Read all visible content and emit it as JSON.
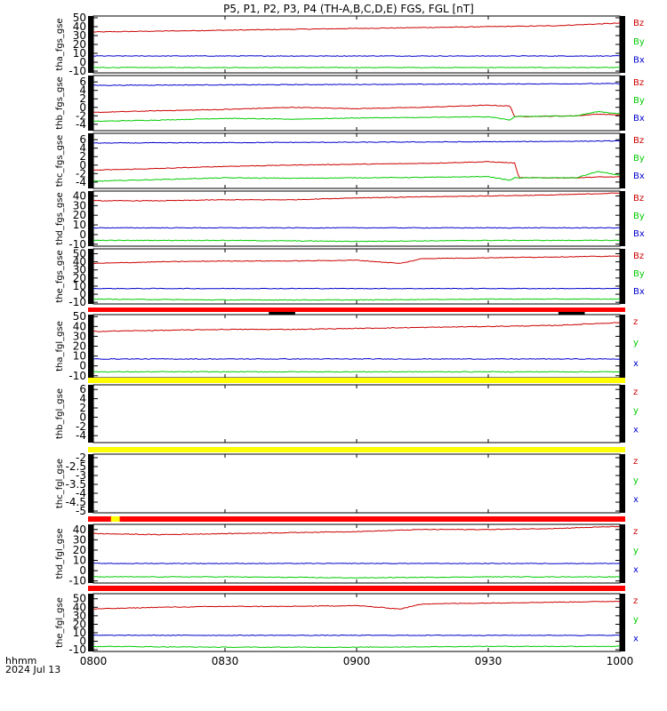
{
  "title": "P5, P1, P2, P3, P4 (TH-A,B,C,D,E) FGS, FGL [nT]",
  "footer": {
    "time_label": "hhmm",
    "date_label": "2024 Jul 13"
  },
  "x_axis": {
    "ticks": [
      "0800",
      "0830",
      "0900",
      "0930",
      "1000"
    ],
    "range_minutes": [
      0,
      120
    ]
  },
  "colors": {
    "z": "#cc0000",
    "y": "#00cc00",
    "x": "#0000cc",
    "bar_red": "#ff0000",
    "bar_yellow": "#ffff00",
    "bar_black": "#000000"
  },
  "chart_data": [
    {
      "type": "line",
      "ylabel": "tha_fgs_gse",
      "ylim": [
        -12,
        52
      ],
      "yticks": [
        50,
        40,
        30,
        20,
        10,
        0,
        -10
      ],
      "legend": [
        "Bz",
        "By",
        "Bx"
      ],
      "series": [
        {
          "name": "Bz",
          "x": [
            0,
            15,
            30,
            45,
            60,
            75,
            90,
            105,
            120
          ],
          "y": [
            34,
            35,
            36,
            37,
            38,
            39,
            40,
            41,
            44
          ]
        },
        {
          "name": "By",
          "x": [
            0,
            30,
            60,
            90,
            120
          ],
          "y": [
            -6,
            -6,
            -6,
            -6,
            -6
          ]
        },
        {
          "name": "Bx",
          "x": [
            0,
            30,
            60,
            90,
            120
          ],
          "y": [
            7,
            7,
            7,
            7,
            7
          ]
        }
      ]
    },
    {
      "type": "line",
      "ylabel": "thb_fgs_gse",
      "ylim": [
        -5.5,
        7.5
      ],
      "yticks": [
        6,
        4,
        2,
        0,
        -2,
        -4
      ],
      "legend": [
        "Bz",
        "By",
        "Bx"
      ],
      "series": [
        {
          "name": "Bz",
          "x": [
            0,
            15,
            30,
            45,
            60,
            75,
            90,
            95,
            96,
            110,
            115,
            120
          ],
          "y": [
            -1.2,
            -0.8,
            -0.5,
            0,
            -0.3,
            0,
            0.5,
            0.3,
            -2.2,
            -2.0,
            -1.6,
            -1.8
          ]
        },
        {
          "name": "By",
          "x": [
            0,
            15,
            30,
            45,
            60,
            75,
            90,
            95,
            96,
            110,
            115,
            120
          ],
          "y": [
            -3.3,
            -3.0,
            -2.6,
            -2.8,
            -2.5,
            -2.4,
            -2.2,
            -3.0,
            -2.2,
            -2.0,
            -1.0,
            -1.5
          ]
        },
        {
          "name": "Bx",
          "x": [
            0,
            30,
            60,
            90,
            120
          ],
          "y": [
            5.2,
            5.3,
            5.4,
            5.5,
            5.6
          ]
        }
      ]
    },
    {
      "type": "line",
      "ylabel": "thc_fgs_gse",
      "ylim": [
        -5.5,
        7.5
      ],
      "yticks": [
        6,
        4,
        2,
        0,
        -2,
        -4
      ],
      "legend": [
        "Bz",
        "By",
        "Bx"
      ],
      "series": [
        {
          "name": "Bz",
          "x": [
            0,
            15,
            30,
            45,
            60,
            75,
            90,
            96,
            97,
            110,
            115,
            120
          ],
          "y": [
            -1.2,
            -0.8,
            -0.3,
            0,
            0.2,
            0.4,
            0.8,
            0.5,
            -3.0,
            -3.0,
            -2.8,
            -2.8
          ]
        },
        {
          "name": "By",
          "x": [
            0,
            15,
            30,
            45,
            60,
            75,
            90,
            95,
            96,
            110,
            115,
            120
          ],
          "y": [
            -3.8,
            -3.4,
            -3.0,
            -3.1,
            -3.0,
            -2.9,
            -2.7,
            -3.6,
            -3.0,
            -3.0,
            -1.5,
            -2.4
          ]
        },
        {
          "name": "Bx",
          "x": [
            0,
            30,
            60,
            90,
            120
          ],
          "y": [
            5.2,
            5.3,
            5.4,
            5.5,
            5.7
          ]
        }
      ]
    },
    {
      "type": "line",
      "ylabel": "thd_fgs_gse",
      "ylim": [
        -12,
        45
      ],
      "yticks": [
        40,
        30,
        20,
        10,
        0,
        -10
      ],
      "legend": [
        "Bz",
        "By",
        "Bx"
      ],
      "series": [
        {
          "name": "Bz",
          "x": [
            0,
            15,
            30,
            45,
            60,
            75,
            90,
            105,
            120
          ],
          "y": [
            35,
            35,
            36,
            36,
            38,
            39,
            40,
            41,
            43
          ]
        },
        {
          "name": "By",
          "x": [
            0,
            30,
            60,
            90,
            120
          ],
          "y": [
            -6,
            -6,
            -7,
            -6,
            -6
          ]
        },
        {
          "name": "Bx",
          "x": [
            0,
            30,
            60,
            90,
            120
          ],
          "y": [
            7,
            7,
            7,
            7,
            7
          ]
        }
      ]
    },
    {
      "type": "line",
      "ylabel": "the_fgs_gse",
      "ylim": [
        -12,
        56
      ],
      "yticks": [
        50,
        40,
        30,
        20,
        10,
        0,
        -10
      ],
      "legend": [
        "Bz",
        "By",
        "Bx"
      ],
      "series": [
        {
          "name": "Bz",
          "x": [
            0,
            15,
            30,
            45,
            60,
            70,
            75,
            90,
            105,
            120
          ],
          "y": [
            38,
            40,
            41,
            41,
            42,
            38,
            44,
            45,
            46,
            47
          ]
        },
        {
          "name": "By",
          "x": [
            0,
            30,
            60,
            90,
            120
          ],
          "y": [
            -6,
            -7,
            -7,
            -6,
            -6
          ]
        },
        {
          "name": "Bx",
          "x": [
            0,
            30,
            60,
            90,
            120
          ],
          "y": [
            7,
            7,
            7,
            7,
            7
          ]
        }
      ]
    },
    {
      "type": "line",
      "ylabel": "tha_fgl_gse",
      "ylim": [
        -12,
        52
      ],
      "yticks": [
        50,
        40,
        30,
        20,
        10,
        0,
        -10
      ],
      "legend": [
        "z",
        "y",
        "x"
      ],
      "series": [
        {
          "name": "z",
          "x": [
            0,
            15,
            30,
            45,
            60,
            75,
            90,
            105,
            120
          ],
          "y": [
            35,
            36,
            37,
            37,
            38,
            39,
            40,
            41,
            44
          ]
        },
        {
          "name": "y",
          "x": [
            0,
            30,
            60,
            90,
            120
          ],
          "y": [
            -6,
            -6,
            -6,
            -6,
            -6
          ]
        },
        {
          "name": "x",
          "x": [
            0,
            30,
            60,
            90,
            120
          ],
          "y": [
            7,
            7,
            7,
            7,
            7
          ]
        }
      ]
    },
    {
      "type": "line",
      "ylabel": "thb_fgl_gse",
      "ylim": [
        -5.5,
        7
      ],
      "yticks": [
        6,
        4,
        2,
        0,
        -2,
        -4
      ],
      "legend": [
        "z",
        "y",
        "x"
      ],
      "series": []
    },
    {
      "type": "line",
      "ylabel": "thc_fgl_gse",
      "ylim": [
        -5.1,
        -1.8
      ],
      "yticks": [
        -2.0,
        -2.5,
        -3.0,
        -3.5,
        -4.0,
        -4.5,
        -5.0
      ],
      "legend": [
        "z",
        "y",
        "x"
      ],
      "series": []
    },
    {
      "type": "line",
      "ylabel": "thd_fgl_gse",
      "ylim": [
        -12,
        45
      ],
      "yticks": [
        40,
        30,
        20,
        10,
        0,
        -10
      ],
      "legend": [
        "z",
        "y",
        "x"
      ],
      "series": [
        {
          "name": "z",
          "x": [
            0,
            15,
            30,
            45,
            60,
            75,
            90,
            105,
            120
          ],
          "y": [
            36,
            35,
            36,
            37,
            38,
            40,
            40,
            41,
            43
          ]
        },
        {
          "name": "y",
          "x": [
            0,
            30,
            60,
            90,
            120
          ],
          "y": [
            -6,
            -6,
            -7,
            -6,
            -6
          ]
        },
        {
          "name": "x",
          "x": [
            0,
            30,
            60,
            90,
            120
          ],
          "y": [
            7,
            7,
            7,
            7,
            7
          ]
        }
      ]
    },
    {
      "type": "line",
      "ylabel": "the_fgl_gse",
      "ylim": [
        -12,
        56
      ],
      "yticks": [
        50,
        40,
        30,
        20,
        10,
        0,
        -10
      ],
      "legend": [
        "z",
        "y",
        "x"
      ],
      "series": [
        {
          "name": "z",
          "x": [
            0,
            15,
            30,
            45,
            60,
            70,
            75,
            90,
            105,
            120
          ],
          "y": [
            38,
            40,
            41,
            41,
            42,
            38,
            44,
            45,
            46,
            47
          ]
        },
        {
          "name": "y",
          "x": [
            0,
            30,
            60,
            90,
            120
          ],
          "y": [
            -6,
            -7,
            -7,
            -6,
            -6
          ]
        },
        {
          "name": "x",
          "x": [
            0,
            30,
            60,
            90,
            120
          ],
          "y": [
            7,
            7,
            7,
            7,
            7
          ]
        }
      ]
    }
  ],
  "status_bars": [
    {
      "after_panel": 4,
      "color": "red",
      "marks": [
        {
          "from": 40,
          "to": 46,
          "color": "black"
        },
        {
          "from": 106,
          "to": 112,
          "color": "black"
        }
      ]
    },
    {
      "after_panel": 5,
      "color": "yellow",
      "marks": []
    },
    {
      "after_panel": 6,
      "color": "yellow",
      "marks": []
    },
    {
      "after_panel": 7,
      "color": "red",
      "marks": [
        {
          "from": 4,
          "to": 6,
          "color": "yellow"
        }
      ]
    },
    {
      "after_panel": 8,
      "color": "red",
      "marks": []
    }
  ]
}
